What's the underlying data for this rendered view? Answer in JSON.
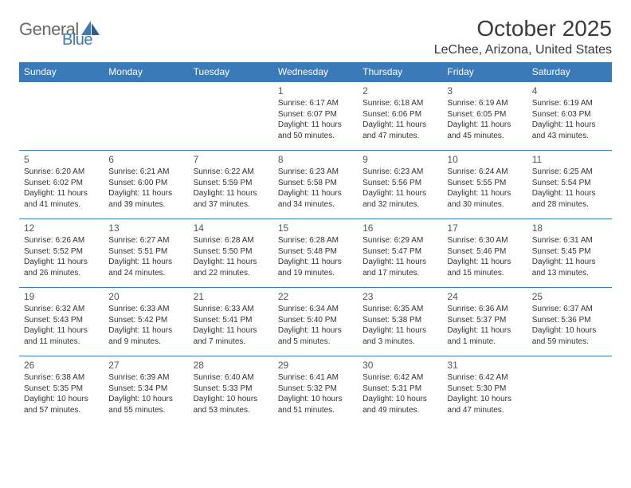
{
  "brand": {
    "part1": "General",
    "part2": "Blue"
  },
  "title": "October 2025",
  "location": "LeChee, Arizona, United States",
  "weekdays": [
    "Sunday",
    "Monday",
    "Tuesday",
    "Wednesday",
    "Thursday",
    "Friday",
    "Saturday"
  ],
  "colors": {
    "headerBg": "#3a7ab8",
    "headerText": "#ffffff",
    "rowBorder": "#3a7ab8",
    "bodyText": "#333333",
    "brandGray": "#6a6a6a",
    "brandBlue": "#3a7ab8"
  },
  "weeks": [
    [
      null,
      null,
      null,
      {
        "day": "1",
        "sunrise": "6:17 AM",
        "sunset": "6:07 PM",
        "daylight": "11 hours and 50 minutes."
      },
      {
        "day": "2",
        "sunrise": "6:18 AM",
        "sunset": "6:06 PM",
        "daylight": "11 hours and 47 minutes."
      },
      {
        "day": "3",
        "sunrise": "6:19 AM",
        "sunset": "6:05 PM",
        "daylight": "11 hours and 45 minutes."
      },
      {
        "day": "4",
        "sunrise": "6:19 AM",
        "sunset": "6:03 PM",
        "daylight": "11 hours and 43 minutes."
      }
    ],
    [
      {
        "day": "5",
        "sunrise": "6:20 AM",
        "sunset": "6:02 PM",
        "daylight": "11 hours and 41 minutes."
      },
      {
        "day": "6",
        "sunrise": "6:21 AM",
        "sunset": "6:00 PM",
        "daylight": "11 hours and 39 minutes."
      },
      {
        "day": "7",
        "sunrise": "6:22 AM",
        "sunset": "5:59 PM",
        "daylight": "11 hours and 37 minutes."
      },
      {
        "day": "8",
        "sunrise": "6:23 AM",
        "sunset": "5:58 PM",
        "daylight": "11 hours and 34 minutes."
      },
      {
        "day": "9",
        "sunrise": "6:23 AM",
        "sunset": "5:56 PM",
        "daylight": "11 hours and 32 minutes."
      },
      {
        "day": "10",
        "sunrise": "6:24 AM",
        "sunset": "5:55 PM",
        "daylight": "11 hours and 30 minutes."
      },
      {
        "day": "11",
        "sunrise": "6:25 AM",
        "sunset": "5:54 PM",
        "daylight": "11 hours and 28 minutes."
      }
    ],
    [
      {
        "day": "12",
        "sunrise": "6:26 AM",
        "sunset": "5:52 PM",
        "daylight": "11 hours and 26 minutes."
      },
      {
        "day": "13",
        "sunrise": "6:27 AM",
        "sunset": "5:51 PM",
        "daylight": "11 hours and 24 minutes."
      },
      {
        "day": "14",
        "sunrise": "6:28 AM",
        "sunset": "5:50 PM",
        "daylight": "11 hours and 22 minutes."
      },
      {
        "day": "15",
        "sunrise": "6:28 AM",
        "sunset": "5:48 PM",
        "daylight": "11 hours and 19 minutes."
      },
      {
        "day": "16",
        "sunrise": "6:29 AM",
        "sunset": "5:47 PM",
        "daylight": "11 hours and 17 minutes."
      },
      {
        "day": "17",
        "sunrise": "6:30 AM",
        "sunset": "5:46 PM",
        "daylight": "11 hours and 15 minutes."
      },
      {
        "day": "18",
        "sunrise": "6:31 AM",
        "sunset": "5:45 PM",
        "daylight": "11 hours and 13 minutes."
      }
    ],
    [
      {
        "day": "19",
        "sunrise": "6:32 AM",
        "sunset": "5:43 PM",
        "daylight": "11 hours and 11 minutes."
      },
      {
        "day": "20",
        "sunrise": "6:33 AM",
        "sunset": "5:42 PM",
        "daylight": "11 hours and 9 minutes."
      },
      {
        "day": "21",
        "sunrise": "6:33 AM",
        "sunset": "5:41 PM",
        "daylight": "11 hours and 7 minutes."
      },
      {
        "day": "22",
        "sunrise": "6:34 AM",
        "sunset": "5:40 PM",
        "daylight": "11 hours and 5 minutes."
      },
      {
        "day": "23",
        "sunrise": "6:35 AM",
        "sunset": "5:38 PM",
        "daylight": "11 hours and 3 minutes."
      },
      {
        "day": "24",
        "sunrise": "6:36 AM",
        "sunset": "5:37 PM",
        "daylight": "11 hours and 1 minute."
      },
      {
        "day": "25",
        "sunrise": "6:37 AM",
        "sunset": "5:36 PM",
        "daylight": "10 hours and 59 minutes."
      }
    ],
    [
      {
        "day": "26",
        "sunrise": "6:38 AM",
        "sunset": "5:35 PM",
        "daylight": "10 hours and 57 minutes."
      },
      {
        "day": "27",
        "sunrise": "6:39 AM",
        "sunset": "5:34 PM",
        "daylight": "10 hours and 55 minutes."
      },
      {
        "day": "28",
        "sunrise": "6:40 AM",
        "sunset": "5:33 PM",
        "daylight": "10 hours and 53 minutes."
      },
      {
        "day": "29",
        "sunrise": "6:41 AM",
        "sunset": "5:32 PM",
        "daylight": "10 hours and 51 minutes."
      },
      {
        "day": "30",
        "sunrise": "6:42 AM",
        "sunset": "5:31 PM",
        "daylight": "10 hours and 49 minutes."
      },
      {
        "day": "31",
        "sunrise": "6:42 AM",
        "sunset": "5:30 PM",
        "daylight": "10 hours and 47 minutes."
      },
      null
    ]
  ],
  "labels": {
    "sunrise": "Sunrise:",
    "sunset": "Sunset:",
    "daylight": "Daylight:"
  }
}
